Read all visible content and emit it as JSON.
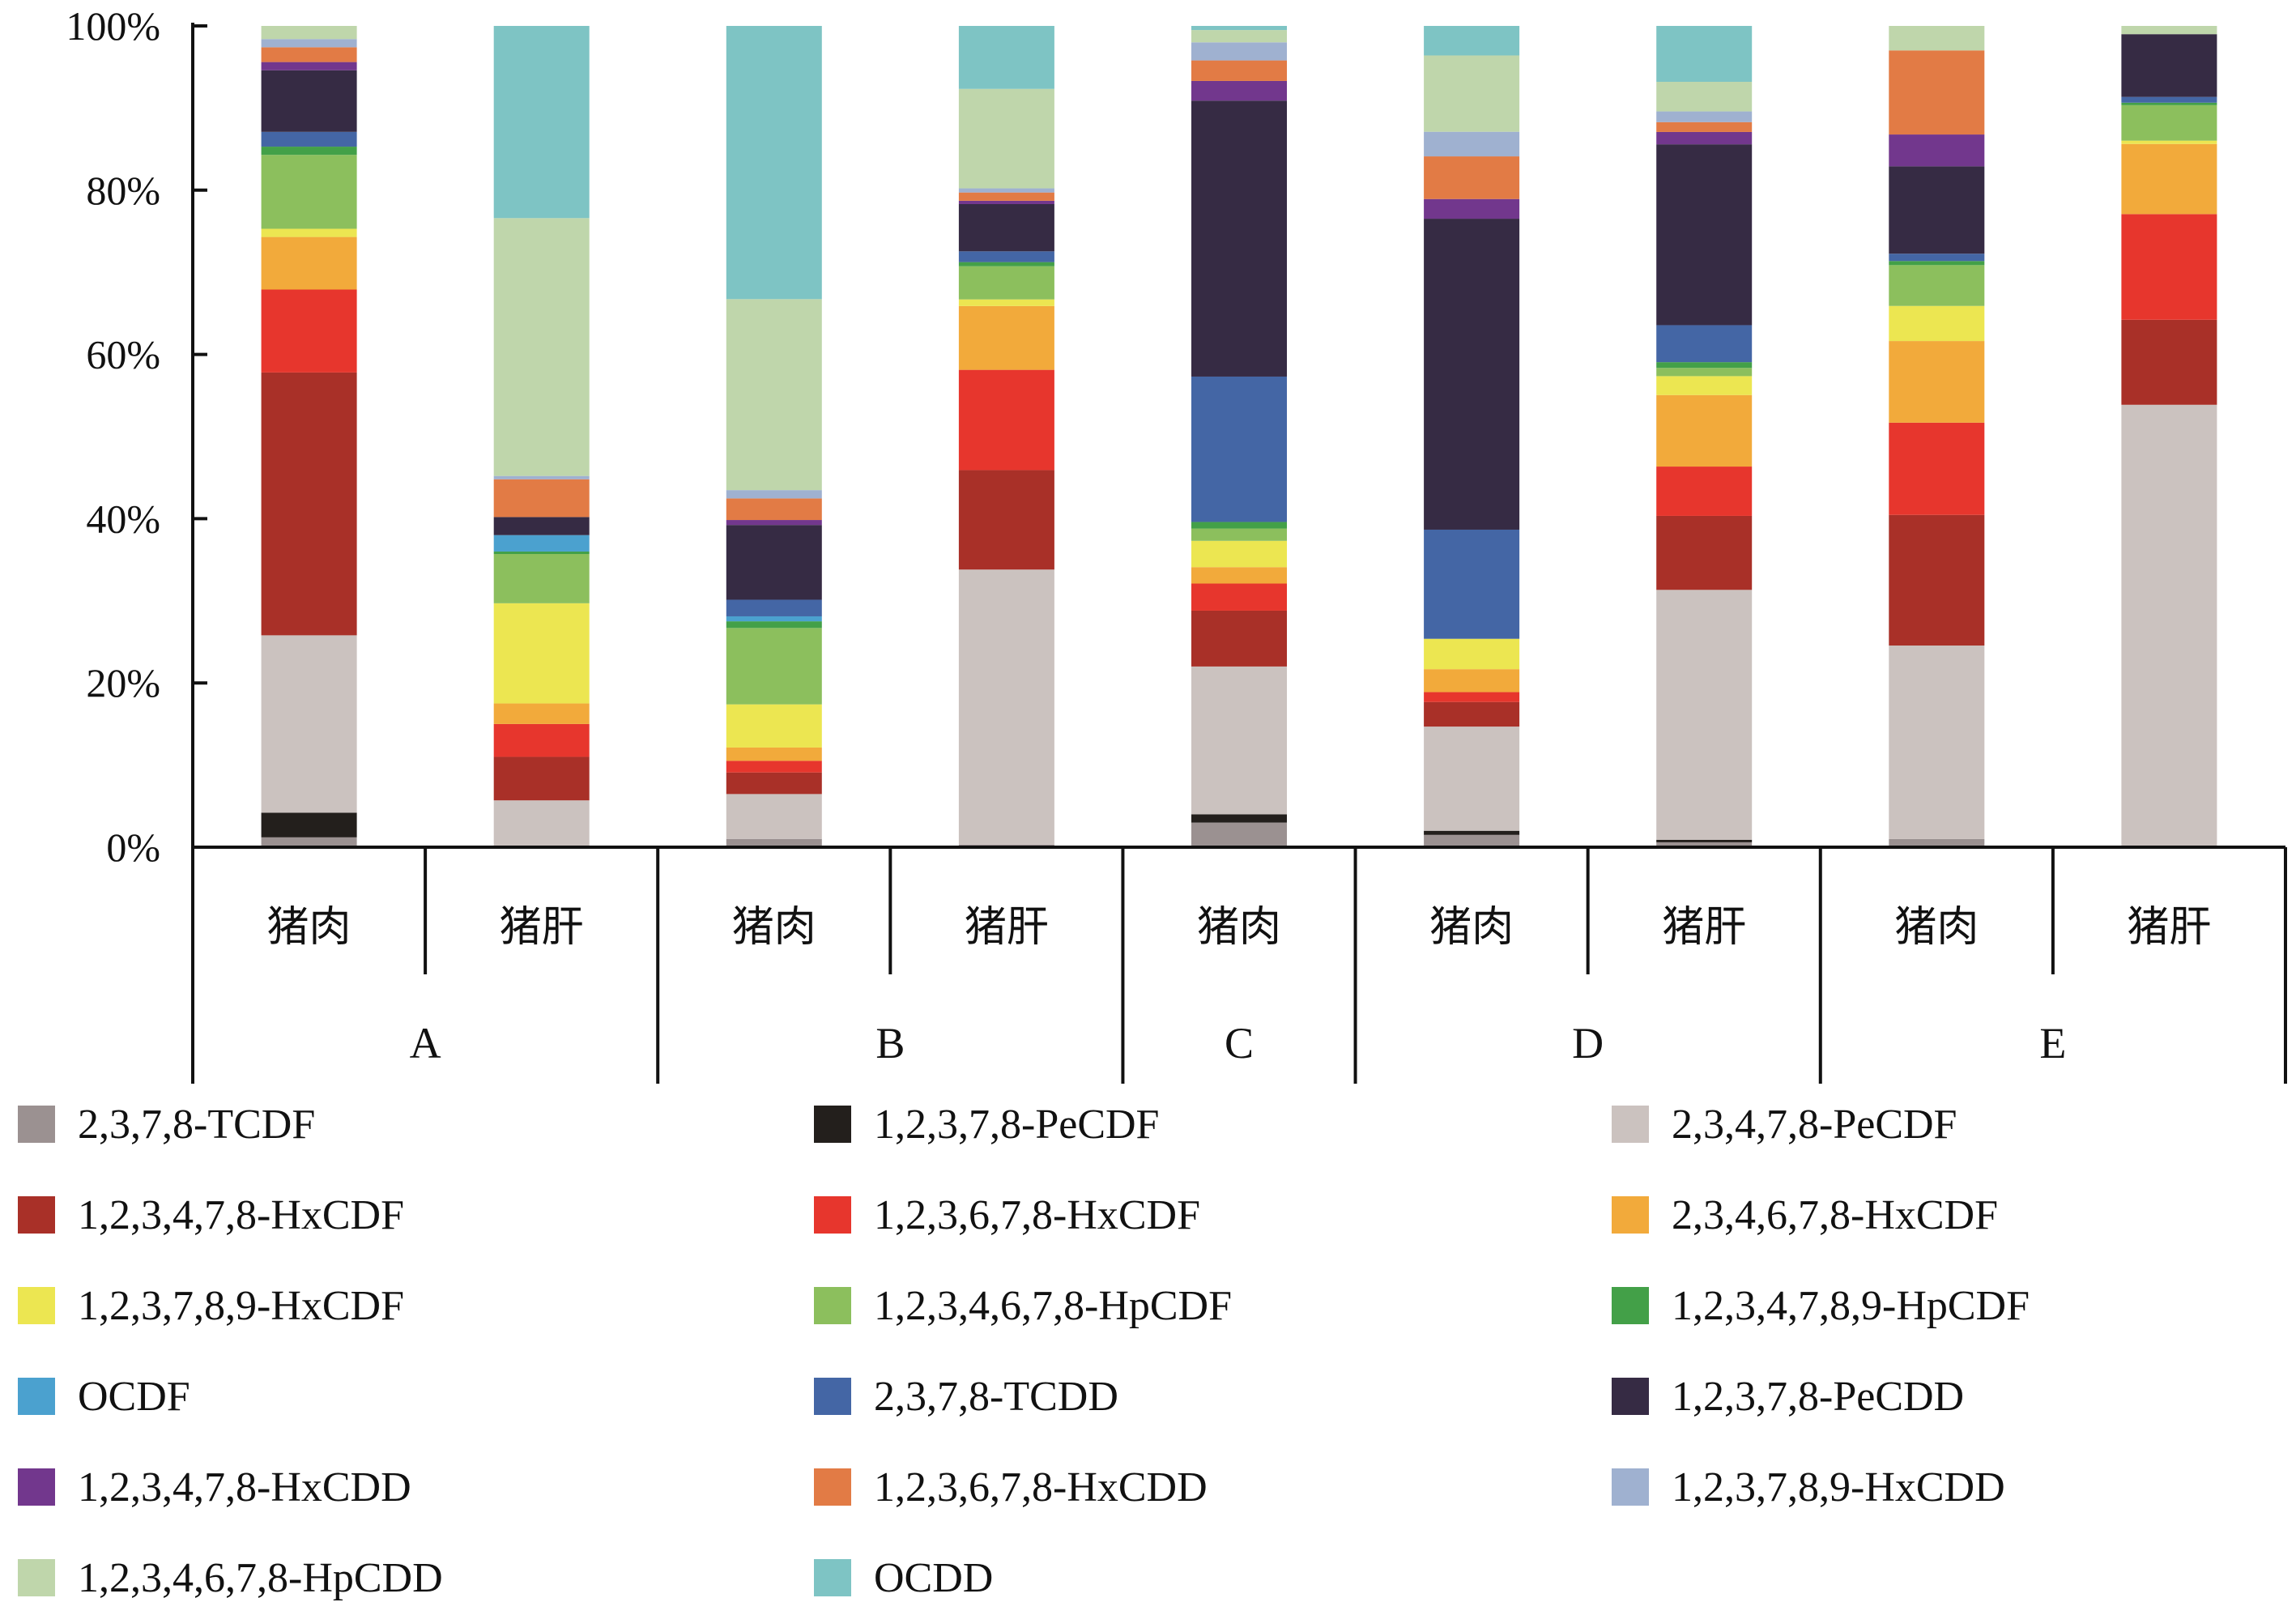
{
  "chart_data": {
    "type": "bar",
    "stacked": true,
    "normalized": true,
    "ylim": [
      0,
      100
    ],
    "y_ticks": [
      "0%",
      "20%",
      "40%",
      "60%",
      "80%",
      "100%"
    ],
    "grid": false,
    "legend_position": "bottom",
    "categories": [
      "猪肉",
      "猪肝",
      "猪肉",
      "猪肝",
      "猪肉",
      "猪肉",
      "猪肝",
      "猪肉",
      "猪肝"
    ],
    "groups": [
      {
        "label": "A",
        "span": 2
      },
      {
        "label": "B",
        "span": 2
      },
      {
        "label": "C",
        "span": 1
      },
      {
        "label": "D",
        "span": 2
      },
      {
        "label": "E",
        "span": 2
      }
    ],
    "series": [
      {
        "name": "2,3,7,8-TCDF",
        "color": "#9b9191",
        "values": [
          1.2,
          0,
          1.0,
          0.3,
          3.0,
          1.5,
          0.6,
          1.0,
          0
        ]
      },
      {
        "name": "1,2,3,7,8-PeCDF",
        "color": "#231f1c",
        "values": [
          3.0,
          0,
          0,
          0,
          1.0,
          0.5,
          0.3,
          0,
          0
        ]
      },
      {
        "name": "2,3,4,7,8-PeCDF",
        "color": "#cbc2bf",
        "values": [
          21.6,
          5.7,
          5.4,
          33.2,
          18.0,
          12.7,
          30.4,
          23.7,
          53.6
        ]
      },
      {
        "name": "1,2,3,4,7,8-HxCDF",
        "color": "#a93028",
        "values": [
          32.0,
          5.3,
          2.6,
          12.0,
          6.8,
          3.0,
          9.0,
          16.0,
          10.3
        ]
      },
      {
        "name": "1,2,3,6,7,8-HxCDF",
        "color": "#e7362d",
        "values": [
          10.1,
          4.0,
          1.4,
          12.1,
          3.3,
          1.2,
          6.0,
          11.3,
          12.8
        ]
      },
      {
        "name": "2,3,4,6,7,8-HxCDF",
        "color": "#f2aa3b",
        "values": [
          6.4,
          2.5,
          1.6,
          7.7,
          2.0,
          2.8,
          8.7,
          10.0,
          8.5
        ]
      },
      {
        "name": "1,2,3,7,8,9-HxCDF",
        "color": "#ece651",
        "values": [
          1.0,
          12.2,
          5.2,
          0.8,
          3.2,
          3.7,
          2.3,
          4.3,
          0.4
        ]
      },
      {
        "name": "1,2,3,4,6,7,8-HpCDF",
        "color": "#8cbf5d",
        "values": [
          9.0,
          6.0,
          9.2,
          4.0,
          1.5,
          0,
          1.0,
          5.0,
          4.3
        ]
      },
      {
        "name": "1,2,3,4,7,8,9-HpCDF",
        "color": "#43a048",
        "values": [
          1.0,
          0.3,
          0.8,
          0.5,
          0.8,
          0,
          0.7,
          0.5,
          0.3
        ]
      },
      {
        "name": "OCDF",
        "color": "#4ba1cf",
        "values": [
          0,
          2.0,
          0.6,
          0,
          0,
          0,
          0,
          0,
          0
        ]
      },
      {
        "name": "2,3,7,8-TCDD",
        "color": "#4466a5",
        "values": [
          1.8,
          0,
          2.0,
          1.3,
          17.7,
          13.3,
          4.5,
          0.9,
          0.7
        ]
      },
      {
        "name": "1,2,3,7,8-PeCDD",
        "color": "#362b44",
        "values": [
          7.5,
          2.2,
          9.0,
          5.7,
          33.6,
          37.9,
          22.0,
          10.7,
          7.6
        ]
      },
      {
        "name": "1,2,3,4,7,8-HxCDD",
        "color": "#72378d",
        "values": [
          1.0,
          0,
          0.6,
          0.4,
          2.4,
          2.4,
          1.5,
          3.9,
          0
        ]
      },
      {
        "name": "1,2,3,6,7,8-HxCDD",
        "color": "#e27b45",
        "values": [
          1.8,
          4.6,
          2.6,
          1.0,
          2.5,
          5.2,
          1.2,
          10.3,
          0
        ]
      },
      {
        "name": "1,2,3,7,8,9-HxCDD",
        "color": "#9fb1d0",
        "values": [
          1.0,
          0.4,
          1.0,
          0.5,
          2.2,
          3.0,
          1.3,
          0,
          0
        ]
      },
      {
        "name": "1,2,3,4,6,7,8-HpCDD",
        "color": "#bfd6ab",
        "values": [
          1.6,
          31.4,
          23.0,
          12.0,
          1.5,
          9.3,
          3.6,
          3.0,
          1.0
        ]
      },
      {
        "name": "OCDD",
        "color": "#7ec4c4",
        "values": [
          0,
          23.4,
          32.9,
          7.6,
          0.5,
          3.6,
          6.8,
          0,
          0
        ]
      }
    ]
  }
}
